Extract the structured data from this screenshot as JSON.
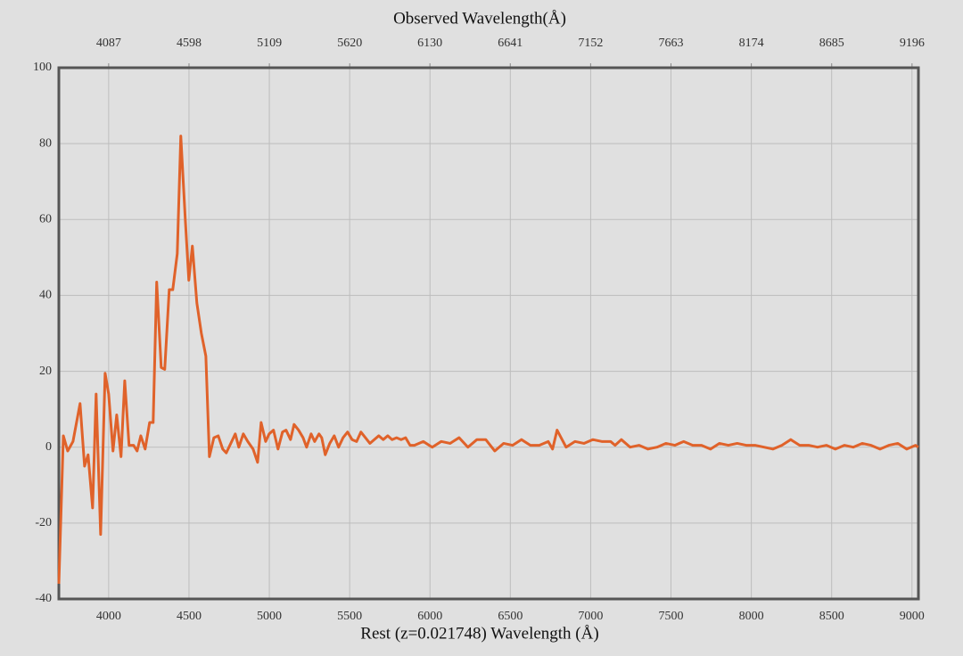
{
  "chart_data": {
    "type": "line",
    "x2label": "Observed Wavelength(Å)",
    "xlabel": "Rest (z=0.021748) Wavelength (Å)",
    "x": [
      3690,
      3718,
      3745,
      3778,
      3822,
      3850,
      3872,
      3900,
      3922,
      3950,
      3978,
      4000,
      4027,
      4050,
      4077,
      4100,
      4127,
      4155,
      4177,
      4200,
      4227,
      4255,
      4277,
      4299,
      4327,
      4349,
      4377,
      4399,
      4427,
      4449,
      4477,
      4499,
      4521,
      4549,
      4577,
      4605,
      4627,
      4655,
      4682,
      4710,
      4732,
      4760,
      4788,
      4810,
      4838,
      4866,
      4899,
      4927,
      4949,
      4977,
      4999,
      5026,
      5054,
      5082,
      5104,
      5132,
      5154,
      5182,
      5210,
      5232,
      5260,
      5282,
      5309,
      5326,
      5348,
      5376,
      5404,
      5431,
      5459,
      5487,
      5515,
      5543,
      5570,
      5598,
      5626,
      5653,
      5681,
      5709,
      5737,
      5764,
      5792,
      5820,
      5848,
      5876,
      5903,
      5958,
      6014,
      6070,
      6125,
      6181,
      6236,
      6292,
      6347,
      6403,
      6458,
      6514,
      6569,
      6625,
      6680,
      6736,
      6763,
      6791,
      6847,
      6902,
      6958,
      7013,
      7069,
      7124,
      7152,
      7191,
      7246,
      7302,
      7357,
      7413,
      7468,
      7524,
      7579,
      7635,
      7690,
      7746,
      7801,
      7857,
      7912,
      7968,
      8023,
      8079,
      8134,
      8190,
      8245,
      8301,
      8357,
      8412,
      8468,
      8523,
      8579,
      8634,
      8690,
      8745,
      8801,
      8856,
      8912,
      8967,
      9022,
      9039
    ],
    "values": [
      -36,
      3,
      -1,
      1.5,
      11.5,
      -5,
      -2,
      -16,
      14,
      -23,
      19.5,
      14,
      -1,
      8.5,
      -2.5,
      17.5,
      0.5,
      0.5,
      -1,
      3,
      -0.5,
      6.5,
      6.5,
      43.5,
      21,
      20.5,
      41.5,
      41.5,
      51,
      82,
      60,
      44,
      53,
      38,
      30,
      24,
      -2.5,
      2.5,
      3,
      -0.5,
      -1.5,
      1,
      3.5,
      0,
      3.5,
      1.5,
      -0.5,
      -4,
      6.5,
      1.5,
      3.5,
      4.5,
      -0.5,
      4,
      4.5,
      2,
      6,
      4.5,
      2.5,
      0,
      3.5,
      1.5,
      3.5,
      2.5,
      -2,
      1,
      3,
      0,
      2.5,
      4,
      2,
      1.5,
      4,
      2.5,
      1,
      2,
      3,
      2,
      3,
      2,
      2.5,
      2,
      2.5,
      0.5,
      0.5,
      1.5,
      0,
      1.5,
      1,
      2.5,
      0,
      2,
      2,
      -1,
      1,
      0.5,
      2,
      0.5,
      0.5,
      1.5,
      -0.5,
      4.5,
      0,
      1.5,
      1,
      2,
      1.5,
      1.5,
      0.5,
      2,
      0,
      0.5,
      -0.5,
      0,
      1,
      0.5,
      1.5,
      0.5,
      0.5,
      -0.5,
      1,
      0.5,
      1,
      0.5,
      0.5,
      0,
      -0.5,
      0.5,
      2,
      0.5,
      0.5,
      0,
      0.5,
      -0.5,
      0.5,
      0,
      1,
      0.5,
      -0.5,
      0.5,
      1,
      -0.5,
      0.5,
      0
    ],
    "color": "#e0622a",
    "xlim": [
      3690,
      9040
    ],
    "xticks": [
      4000,
      4500,
      5000,
      5500,
      6000,
      6500,
      7000,
      7500,
      8000,
      8500,
      9000
    ],
    "x2lim": [
      3770.25,
      9236.6
    ],
    "x2ticks": [
      4087,
      4598,
      5109,
      5620,
      6130,
      6641,
      7152,
      7663,
      8174,
      8685,
      9196
    ],
    "ylim": [
      -40,
      100
    ],
    "yticks": [
      -40,
      -20,
      0,
      20,
      40,
      60,
      80,
      100
    ],
    "grid": true
  }
}
